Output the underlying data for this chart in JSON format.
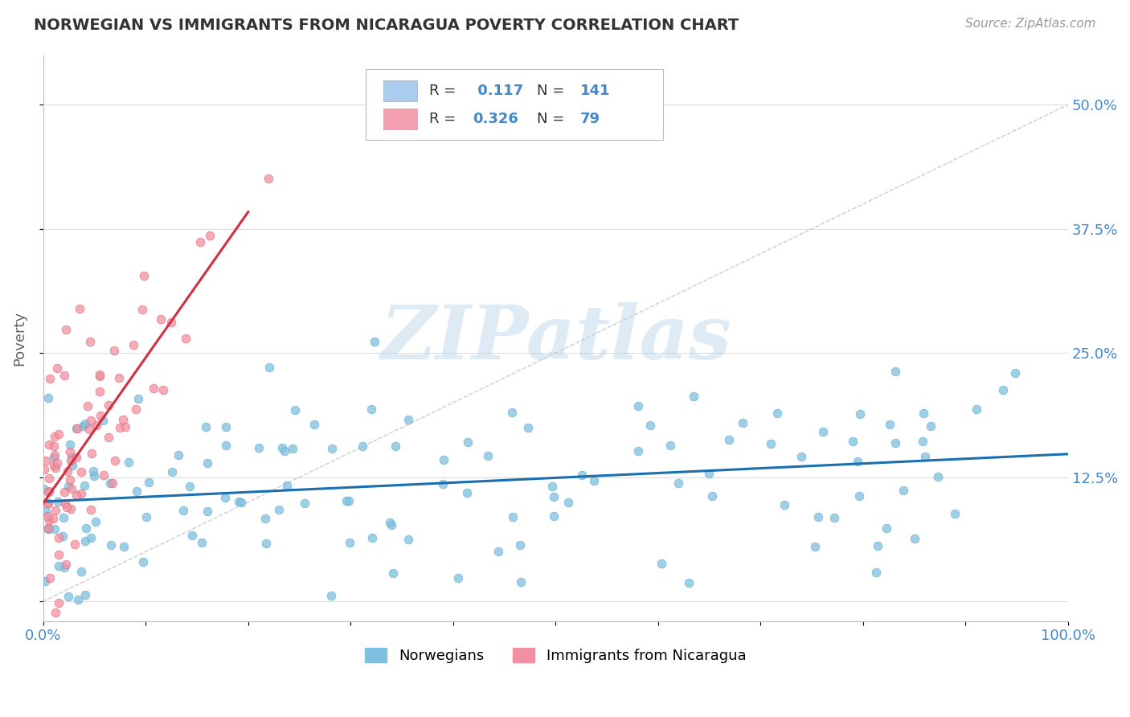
{
  "title": "NORWEGIAN VS IMMIGRANTS FROM NICARAGUA POVERTY CORRELATION CHART",
  "source": "Source: ZipAtlas.com",
  "ylabel": "Poverty",
  "xlabel": "",
  "xlim": [
    0,
    1
  ],
  "ylim": [
    -0.02,
    0.55
  ],
  "yticks": [
    0.0,
    0.125,
    0.25,
    0.375,
    0.5
  ],
  "ytick_labels": [
    "",
    "12.5%",
    "25.0%",
    "37.5%",
    "50.0%"
  ],
  "xticks": [
    0.0,
    0.1,
    0.2,
    0.3,
    0.4,
    0.5,
    0.6,
    0.7,
    0.8,
    0.9,
    1.0
  ],
  "xtick_labels": [
    "0.0%",
    "",
    "",
    "",
    "",
    "",
    "",
    "",
    "",
    "",
    "100.0%"
  ],
  "norwegian_color": "#7fbfdf",
  "norwegian_edge_color": "#5aaace",
  "nicaragua_color": "#f090a0",
  "nicaragua_edge_color": "#e06070",
  "norwegian_line_color": "#1a6faf",
  "nicaragua_line_color": "#d03040",
  "R_norwegian": 0.117,
  "N_norwegian": 141,
  "R_nicaragua": 0.326,
  "N_nicaragua": 79,
  "watermark_text": "ZIPatlas",
  "background_color": "#ffffff",
  "grid_color": "#dddddd",
  "title_color": "#333333",
  "axis_label_color": "#666666",
  "tick_label_color": "#4488cc",
  "legend_color_norwegian": "#aaccee",
  "legend_color_nicaragua": "#f4a0b0",
  "marker_size": 60,
  "marker_alpha": 0.75,
  "seed": 99
}
